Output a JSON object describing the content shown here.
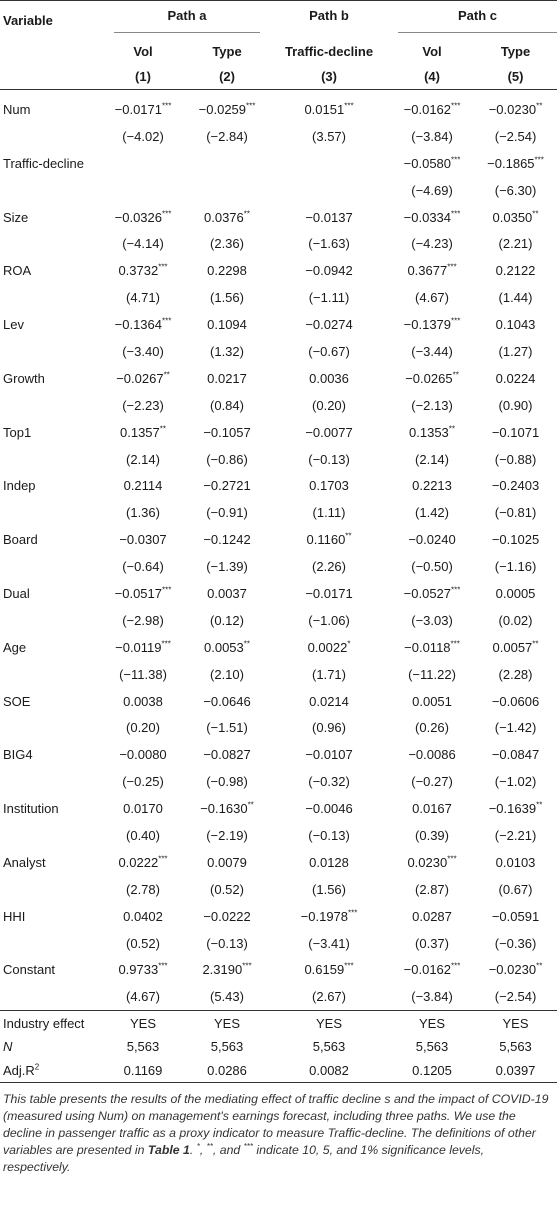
{
  "table": {
    "header": {
      "variable": "Variable",
      "paths": [
        "Path a",
        "Path b",
        "Path c"
      ],
      "columns": [
        "Vol",
        "Type",
        "Traffic-decline",
        "Vol",
        "Type"
      ],
      "numbers": [
        "(1)",
        "(2)",
        "(3)",
        "(4)",
        "(5)"
      ]
    },
    "rows": [
      {
        "label": "Num",
        "coef": [
          "−0.0171***",
          "−0.0259***",
          "0.0151***",
          "−0.0162***",
          "−0.0230**"
        ],
        "t": [
          "(−4.02)",
          "(−2.84)",
          "(3.57)",
          "(−3.84)",
          "(−2.54)"
        ]
      },
      {
        "label": "Traffic-decline",
        "coef": [
          null,
          null,
          null,
          "−0.0580***",
          "−0.1865***"
        ],
        "t": [
          null,
          null,
          null,
          "(−4.69)",
          "(−6.30)"
        ]
      },
      {
        "label": "Size",
        "coef": [
          "−0.0326***",
          "0.0376**",
          "−0.0137",
          "−0.0334***",
          "0.0350**"
        ],
        "t": [
          "(−4.14)",
          "(2.36)",
          "(−1.63)",
          "(−4.23)",
          "(2.21)"
        ]
      },
      {
        "label": "ROA",
        "coef": [
          "0.3732***",
          "0.2298",
          "−0.0942",
          "0.3677***",
          "0.2122"
        ],
        "t": [
          "(4.71)",
          "(1.56)",
          "(−1.11)",
          "(4.67)",
          "(1.44)"
        ]
      },
      {
        "label": "Lev",
        "coef": [
          "−0.1364***",
          "0.1094",
          "−0.0274",
          "−0.1379***",
          "0.1043"
        ],
        "t": [
          "(−3.40)",
          "(1.32)",
          "(−0.67)",
          "(−3.44)",
          "(1.27)"
        ]
      },
      {
        "label": "Growth",
        "coef": [
          "−0.0267**",
          "0.0217",
          "0.0036",
          "−0.0265**",
          "0.0224"
        ],
        "t": [
          "(−2.23)",
          "(0.84)",
          "(0.20)",
          "(−2.13)",
          "(0.90)"
        ]
      },
      {
        "label": "Top1",
        "coef": [
          "0.1357**",
          "−0.1057",
          "−0.0077",
          "0.1353**",
          "−0.1071"
        ],
        "t": [
          "(2.14)",
          "(−0.86)",
          "(−0.13)",
          "(2.14)",
          "(−0.88)"
        ]
      },
      {
        "label": "Indep",
        "coef": [
          "0.2114",
          "−0.2721",
          "0.1703",
          "0.2213",
          "−0.2403"
        ],
        "t": [
          "(1.36)",
          "(−0.91)",
          "(1.11)",
          "(1.42)",
          "(−0.81)"
        ]
      },
      {
        "label": "Board",
        "coef": [
          "−0.0307",
          "−0.1242",
          "0.1160**",
          "−0.0240",
          "−0.1025"
        ],
        "t": [
          "(−0.64)",
          "(−1.39)",
          "(2.26)",
          "(−0.50)",
          "(−1.16)"
        ]
      },
      {
        "label": "Dual",
        "coef": [
          "−0.0517***",
          "0.0037",
          "−0.0171",
          "−0.0527***",
          "0.0005"
        ],
        "t": [
          "(−2.98)",
          "(0.12)",
          "(−1.06)",
          "(−3.03)",
          "(0.02)"
        ]
      },
      {
        "label": "Age",
        "coef": [
          "−0.0119***",
          "0.0053**",
          "0.0022*",
          "−0.0118***",
          "0.0057**"
        ],
        "t": [
          "(−11.38)",
          "(2.10)",
          "(1.71)",
          "(−11.22)",
          "(2.28)"
        ]
      },
      {
        "label": "SOE",
        "coef": [
          "0.0038",
          "−0.0646",
          "0.0214",
          "0.0051",
          "−0.0606"
        ],
        "t": [
          "(0.20)",
          "(−1.51)",
          "(0.96)",
          "(0.26)",
          "(−1.42)"
        ]
      },
      {
        "label": "BIG4",
        "coef": [
          "−0.0080",
          "−0.0827",
          "−0.0107",
          "−0.0086",
          "−0.0847"
        ],
        "t": [
          "(−0.25)",
          "(−0.98)",
          "(−0.32)",
          "(−0.27)",
          "(−1.02)"
        ]
      },
      {
        "label": "Institution",
        "coef": [
          "0.0170",
          "−0.1630**",
          "−0.0046",
          "0.0167",
          "−0.1639**"
        ],
        "t": [
          "(0.40)",
          "(−2.19)",
          "(−0.13)",
          "(0.39)",
          "(−2.21)"
        ]
      },
      {
        "label": "Analyst",
        "coef": [
          "0.0222***",
          "0.0079",
          "0.0128",
          "0.0230***",
          "0.0103"
        ],
        "t": [
          "(2.78)",
          "(0.52)",
          "(1.56)",
          "(2.87)",
          "(0.67)"
        ]
      },
      {
        "label": "HHI",
        "coef": [
          "0.0402",
          "−0.0222",
          "−0.1978***",
          "0.0287",
          "−0.0591"
        ],
        "t": [
          "(0.52)",
          "(−0.13)",
          "(−3.41)",
          "(0.37)",
          "(−0.36)"
        ]
      },
      {
        "label": "Constant",
        "coef": [
          "0.9733***",
          "2.3190***",
          "0.6159***",
          "−0.0162***",
          "−0.0230**"
        ],
        "t": [
          "(4.67)",
          "(5.43)",
          "(2.67)",
          "(−3.84)",
          "(−2.54)"
        ]
      }
    ],
    "footer": [
      {
        "label": "Industry effect",
        "values": [
          "YES",
          "YES",
          "YES",
          "YES",
          "YES"
        ]
      },
      {
        "label": "N",
        "values": [
          "5,563",
          "5,563",
          "5,563",
          "5,563",
          "5,563"
        ]
      },
      {
        "label": "Adj.R",
        "label_sup": "2",
        "values": [
          "0.1169",
          "0.0286",
          "0.0082",
          "0.1205",
          "0.0397"
        ]
      }
    ],
    "note": [
      "This table presents the results of the mediating effect of traffic decline s and the impact of COVID-19 (measured using Num) on management's earnings forecast, including three paths. We use the decline in passenger traffic as a proxy indicator to measure Traffic-decline. The definitions of other variables are presented in ",
      "Table 1",
      ". ",
      "*",
      ", ",
      "**",
      ", and ",
      "***",
      " indicate 10, 5, and 1% significance levels, respectively."
    ]
  }
}
